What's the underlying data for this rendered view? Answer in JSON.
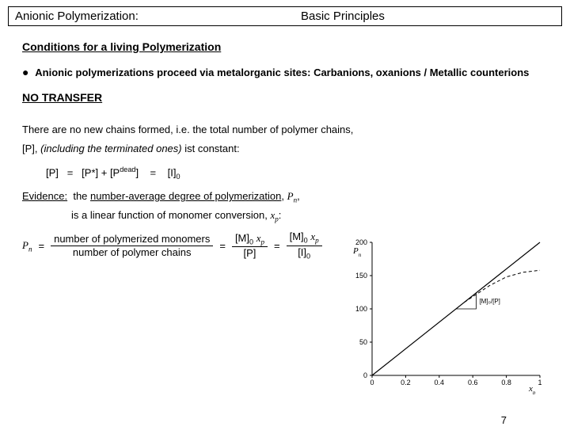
{
  "header": {
    "left": "Anionic Polymerization:",
    "right": "Basic Principles"
  },
  "section_title": "Conditions for a living Polymerization",
  "bullet": "Anionic polymerizations proceed via metalorganic sites: Carbanions, oxanions / Metallic counterions",
  "no_transfer": "NO TRANSFER",
  "body_line1": "There are no new chains formed, i.e. the total number of polymer chains,",
  "body_line2_prefix": "[P], ",
  "body_line2_italic": "(including the terminated ones)",
  "body_line2_suffix": " ist constant:",
  "eq1_lhs": "[P]",
  "eq1_mid": "[P*] + [P",
  "eq1_super": "dead",
  "eq1_mid2": "]",
  "eq1_rhs": "[I]",
  "eq1_sub0": "0",
  "evidence_label": "Evidence:",
  "evidence_text1_a": "the ",
  "evidence_text1_u": "number-average degree of polymerization",
  "evidence_text1_b": ", ",
  "evidence_pn": "P",
  "evidence_pn_sub": "n",
  "evidence_text1_c": ",",
  "evidence_text2_a": "is a linear function of monomer conversion, ",
  "evidence_xp": "x",
  "evidence_xp_sub": "p",
  "evidence_text2_b": ":",
  "frac_eq": {
    "lhs_var": "P",
    "lhs_sub": "n",
    "num_words": "number of polymerized monomers",
    "den_words": "number of polymer chains",
    "M": "[M]",
    "zero": "0",
    "xp": "x",
    "p": "p",
    "P": "[P]",
    "I": "[I]"
  },
  "chart": {
    "type": "line",
    "xlim": [
      0,
      1.0
    ],
    "ylim": [
      0,
      200
    ],
    "xticks": [
      0,
      0.2,
      0.4,
      0.6,
      0.8,
      1.0
    ],
    "yticks": [
      0,
      50,
      100,
      150,
      200
    ],
    "xlabel": "x",
    "xlabel_sub": "p",
    "ylabel": "P",
    "ylabel_sub": "n",
    "axis_color": "#000000",
    "line_color": "#000000",
    "background": "#ffffff",
    "line_width": 1.2,
    "series_linear": [
      [
        0,
        0
      ],
      [
        1.0,
        200
      ]
    ],
    "series_dashed": [
      [
        0.55,
        110
      ],
      [
        0.7,
        135
      ],
      [
        0.8,
        148
      ],
      [
        0.9,
        155
      ],
      [
        1.0,
        158
      ]
    ],
    "dashed_style": "4,3",
    "slope_label": "[M]₀/[P]",
    "tick_fontsize": 9,
    "label_fontsize": 11
  },
  "page_number": "7"
}
